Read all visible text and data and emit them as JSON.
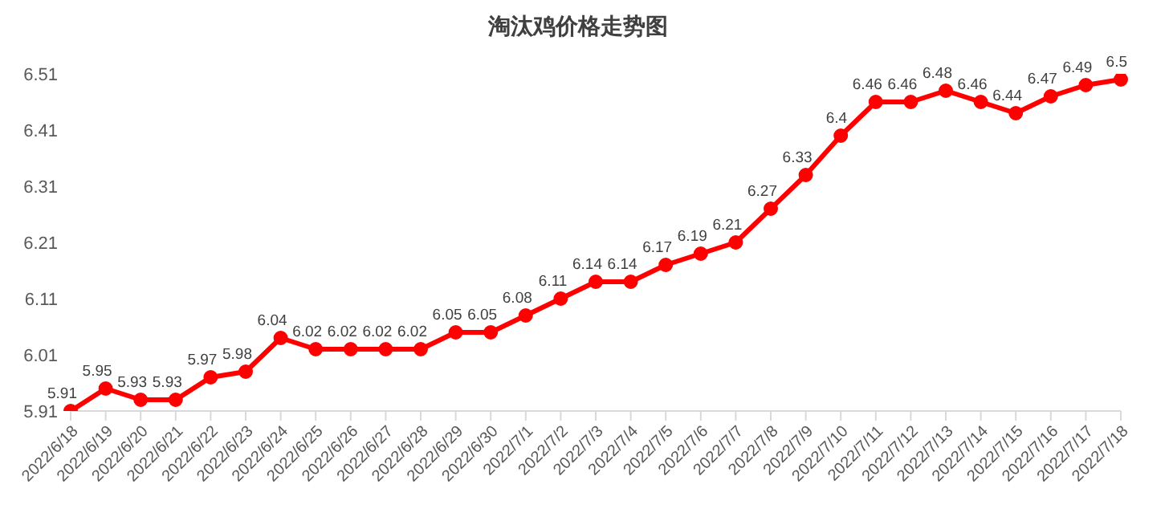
{
  "chart_data": {
    "type": "line",
    "title": "淘汰鸡价格走势图",
    "categories": [
      "2022/6/18",
      "2022/6/19",
      "2022/6/20",
      "2022/6/21",
      "2022/6/22",
      "2022/6/23",
      "2022/6/24",
      "2022/6/25",
      "2022/6/26",
      "2022/6/27",
      "2022/6/28",
      "2022/6/29",
      "2022/6/30",
      "2022/7/1",
      "2022/7/2",
      "2022/7/3",
      "2022/7/4",
      "2022/7/5",
      "2022/7/6",
      "2022/7/7",
      "2022/7/8",
      "2022/7/9",
      "2022/7/10",
      "2022/7/11",
      "2022/7/12",
      "2022/7/13",
      "2022/7/14",
      "2022/7/15",
      "2022/7/16",
      "2022/7/17",
      "2022/7/18"
    ],
    "series": [
      {
        "color": "#ff0000",
        "values": [
          5.91,
          5.95,
          5.93,
          5.93,
          5.97,
          5.98,
          6.04,
          6.02,
          6.02,
          6.02,
          6.02,
          6.05,
          6.05,
          6.08,
          6.11,
          6.14,
          6.14,
          6.17,
          6.19,
          6.21,
          6.27,
          6.33,
          6.4,
          6.46,
          6.46,
          6.48,
          6.46,
          6.44,
          6.47,
          6.49,
          6.5
        ]
      }
    ],
    "ylim": [
      5.91,
      6.51
    ],
    "yticks": [
      5.91,
      6.01,
      6.11,
      6.21,
      6.31,
      6.41,
      6.51
    ],
    "grid": false,
    "legend": false,
    "marker": "circle",
    "line_style": "solid",
    "data_labels": true
  }
}
